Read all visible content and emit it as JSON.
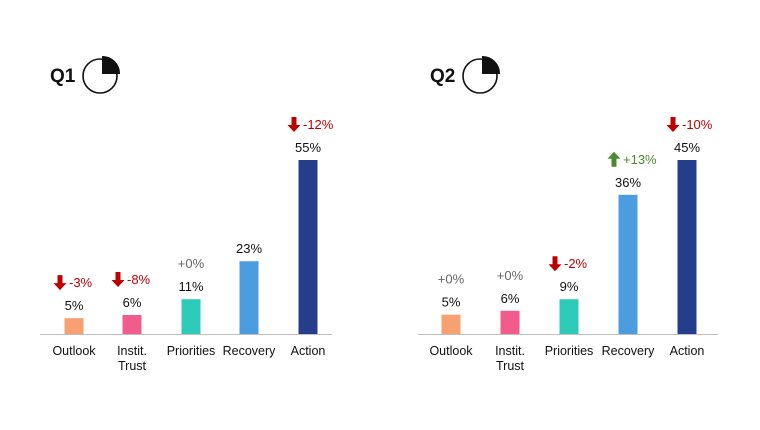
{
  "chart_data": [
    {
      "type": "bar",
      "title": "Q1",
      "pie_icon_fraction": 0.25,
      "categories": [
        [
          "Outlook"
        ],
        [
          "Instit.",
          "Trust"
        ],
        [
          "Priorities"
        ],
        [
          "Recovery"
        ],
        [
          "Action"
        ]
      ],
      "values": [
        5,
        6,
        11,
        23,
        55
      ],
      "value_labels": [
        "5%",
        "6%",
        "11%",
        "23%",
        "55%"
      ],
      "changes": [
        "-3%",
        "-8%",
        "+0%",
        "",
        "-12%"
      ],
      "change_direction": [
        "down",
        "down",
        "none",
        "",
        "down"
      ]
    },
    {
      "type": "bar",
      "title": "Q2",
      "pie_icon_fraction": 0.25,
      "categories": [
        [
          "Outlook"
        ],
        [
          "Instit.",
          "Trust"
        ],
        [
          "Priorities"
        ],
        [
          "Recovery"
        ],
        [
          "Action"
        ]
      ],
      "values": [
        5,
        6,
        9,
        36,
        45
      ],
      "value_labels": [
        "5%",
        "6%",
        "9%",
        "36%",
        "45%"
      ],
      "changes": [
        "+0%",
        "+0%",
        "-2%",
        "+13%",
        "-10%"
      ],
      "change_direction": [
        "none",
        "none",
        "down",
        "up",
        "down"
      ]
    }
  ],
  "colors": {
    "bars": [
      "#f7a071",
      "#f25c8c",
      "#2ecbbb",
      "#4b9de0",
      "#243e8c"
    ],
    "down": "#c00000",
    "up": "#4c8a2f",
    "neutral": "#666666",
    "axis": "#bfbfbf"
  }
}
